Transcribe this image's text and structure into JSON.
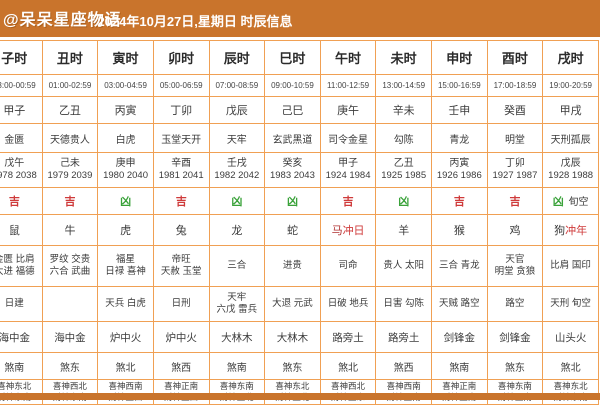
{
  "header": {
    "brand": "@呆呆星座物语",
    "title": "2024年10月27日,星期日 时辰信息"
  },
  "colors": {
    "accent_orange": "#c9742c",
    "border_orange": "#f0a053",
    "ji_red": "#cf3a3a",
    "xiong_green": "#3aa23a"
  },
  "table": {
    "columns": [
      {
        "name": "子时",
        "time": "23:00-00:59",
        "ganzhi": "甲子",
        "star": "金匮",
        "hour_ganzhi": "戊午",
        "years": "1978 2038",
        "luck": "吉",
        "luck_extra": "",
        "zodiac": "鼠",
        "zodiac_extra": "",
        "auspicious": [
          "金匮 比肩",
          "大进 福德"
        ],
        "inauspicious": [
          "日建"
        ],
        "nayin": "海中金",
        "sha": "煞南",
        "xishen": "喜神东北",
        "caishen": "财神东南"
      },
      {
        "name": "丑时",
        "time": "01:00-02:59",
        "ganzhi": "乙丑",
        "star": "天德贵人",
        "hour_ganzhi": "己未",
        "years": "1979 2039",
        "luck": "吉",
        "luck_extra": "",
        "zodiac": "牛",
        "zodiac_extra": "",
        "auspicious": [
          "罗纹 交贵",
          "六合 武曲"
        ],
        "inauspicious": [],
        "nayin": "海中金",
        "sha": "煞东",
        "xishen": "喜神西北",
        "caishen": "财神东南"
      },
      {
        "name": "寅时",
        "time": "03:00-04:59",
        "ganzhi": "丙寅",
        "star": "白虎",
        "hour_ganzhi": "庚申",
        "years": "1980 2040",
        "luck": "凶",
        "luck_extra": "",
        "zodiac": "虎",
        "zodiac_extra": "",
        "auspicious": [
          "福星",
          "日禄 喜神"
        ],
        "inauspicious": [
          "天兵 白虎"
        ],
        "nayin": "炉中火",
        "sha": "煞北",
        "xishen": "喜神西南",
        "caishen": "财神正西"
      },
      {
        "name": "卯时",
        "time": "05:00-06:59",
        "ganzhi": "丁卯",
        "star": "玉堂天开",
        "hour_ganzhi": "辛酉",
        "years": "1981 2041",
        "luck": "吉",
        "luck_extra": "",
        "zodiac": "兔",
        "zodiac_extra": "",
        "auspicious": [
          "帝旺",
          "天赦 玉堂"
        ],
        "inauspicious": [
          "日刑"
        ],
        "nayin": "炉中火",
        "sha": "煞西",
        "xishen": "喜神正南",
        "caishen": "财神正西"
      },
      {
        "name": "辰时",
        "time": "07:00-08:59",
        "ganzhi": "戊辰",
        "star": "天牢",
        "hour_ganzhi": "壬戌",
        "years": "1982 2042",
        "luck": "凶",
        "luck_extra": "",
        "zodiac": "龙",
        "zodiac_extra": "",
        "auspicious": [
          "三合"
        ],
        "inauspicious": [
          "天牢",
          "六戊 雷兵"
        ],
        "nayin": "大林木",
        "sha": "煞南",
        "xishen": "喜神东南",
        "caishen": "财神正北"
      },
      {
        "name": "巳时",
        "time": "09:00-10:59",
        "ganzhi": "己巳",
        "star": "玄武黑道",
        "hour_ganzhi": "癸亥",
        "years": "1983 2043",
        "luck": "凶",
        "luck_extra": "",
        "zodiac": "蛇",
        "zodiac_extra": "",
        "auspicious": [
          "进贵"
        ],
        "inauspicious": [
          "大退 元武"
        ],
        "nayin": "大林木",
        "sha": "煞东",
        "xishen": "喜神东北",
        "caishen": "财神正北"
      },
      {
        "name": "午时",
        "time": "11:00-12:59",
        "ganzhi": "庚午",
        "star": "司令金星",
        "hour_ganzhi": "甲子",
        "years": "1924 1984",
        "luck": "吉",
        "luck_extra": "",
        "zodiac": "马",
        "zodiac_extra": "冲日",
        "zodiac_color": "#b03030",
        "auspicious": [
          "司命"
        ],
        "inauspicious": [
          "日破 地兵"
        ],
        "nayin": "路旁土",
        "sha": "煞北",
        "xishen": "喜神西北",
        "caishen": "财神正东"
      },
      {
        "name": "未时",
        "time": "13:00-14:59",
        "ganzhi": "辛未",
        "star": "勾陈",
        "hour_ganzhi": "乙丑",
        "years": "1925 1985",
        "luck": "凶",
        "luck_extra": "",
        "zodiac": "羊",
        "zodiac_extra": "",
        "auspicious": [
          "贵人 太阳"
        ],
        "inauspicious": [
          "日害 勾陈"
        ],
        "nayin": "路旁土",
        "sha": "煞西",
        "xishen": "喜神西南",
        "caishen": "财神正南"
      },
      {
        "name": "申时",
        "time": "15:00-16:59",
        "ganzhi": "壬申",
        "star": "青龙",
        "hour_ganzhi": "丙寅",
        "years": "1926 1986",
        "luck": "吉",
        "luck_extra": "",
        "zodiac": "猴",
        "zodiac_extra": "",
        "auspicious": [
          "三合 青龙"
        ],
        "inauspicious": [
          "天贼 路空"
        ],
        "nayin": "剑锋金",
        "sha": "煞南",
        "xishen": "喜神正南",
        "caishen": "财神正南"
      },
      {
        "name": "酉时",
        "time": "17:00-18:59",
        "ganzhi": "癸酉",
        "star": "明堂",
        "hour_ganzhi": "丁卯",
        "years": "1927 1987",
        "luck": "吉",
        "luck_extra": "",
        "zodiac": "鸡",
        "zodiac_extra": "",
        "auspicious": [
          "天官",
          "明堂 贪狼"
        ],
        "inauspicious": [
          "路空"
        ],
        "nayin": "剑锋金",
        "sha": "煞东",
        "xishen": "喜神东南",
        "caishen": "财神正南"
      },
      {
        "name": "戌时",
        "time": "19:00-20:59",
        "ganzhi": "甲戌",
        "star": "天刑孤辰",
        "hour_ganzhi": "戊辰",
        "years": "1928 1988",
        "luck": "凶",
        "luck_extra": "旬空",
        "zodiac": "狗",
        "zodiac_extra": "冲年",
        "auspicious": [
          "比肩 国印"
        ],
        "inauspicious": [
          "天刑 旬空"
        ],
        "nayin": "山头火",
        "sha": "煞北",
        "xishen": "喜神东北",
        "caishen": "财神东南"
      }
    ]
  }
}
